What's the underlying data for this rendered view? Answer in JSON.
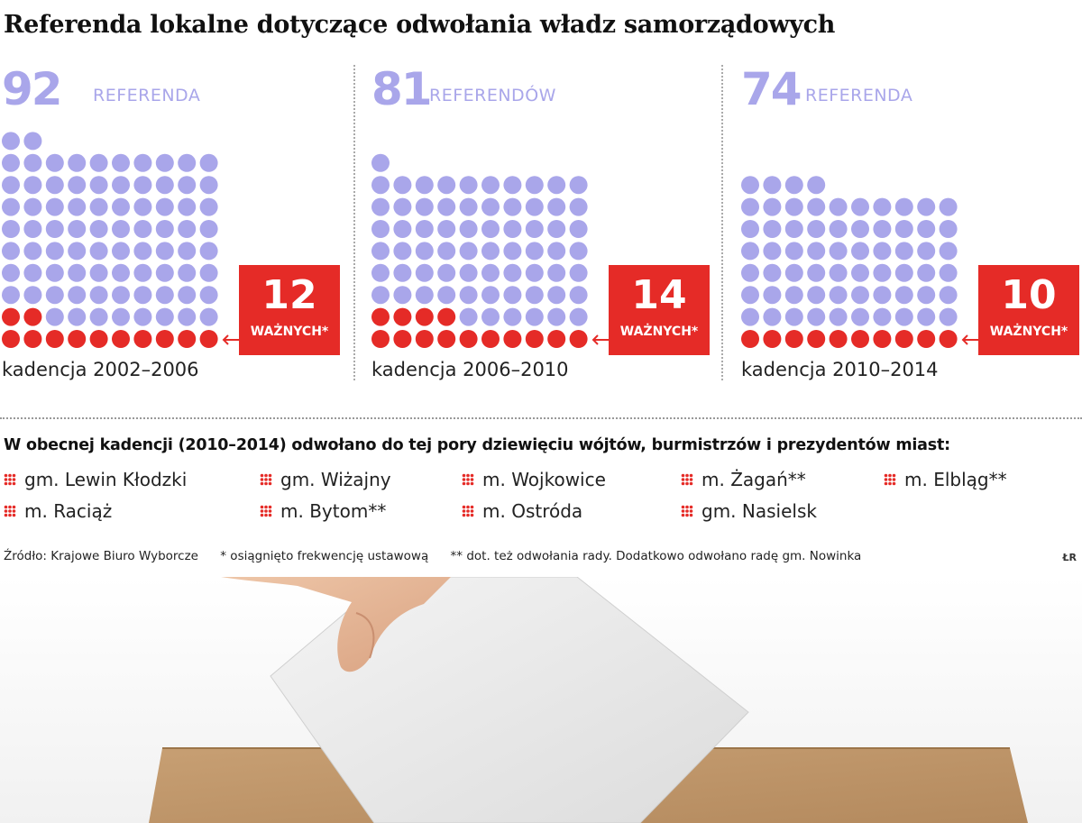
{
  "title": "Referenda lokalne dotyczące odwołania władz samorządowych",
  "chart_data": [
    {
      "type": "waffle",
      "total": 92,
      "total_label": "REFERENDA",
      "valid": 12,
      "valid_label": "WAŻNYCH*",
      "term": "kadencja 2002–2006"
    },
    {
      "type": "waffle",
      "total": 81,
      "total_label": "REFERENDÓW",
      "valid": 14,
      "valid_label": "WAŻNYCH*",
      "term": "kadencja 2006–2010"
    },
    {
      "type": "waffle",
      "total": 74,
      "total_label": "REFERENDA",
      "valid": 10,
      "valid_label": "WAŻNYCH*",
      "term": "kadencja 2010–2014"
    }
  ],
  "colors": {
    "total": "#a9a6ea",
    "valid": "#e52b27"
  },
  "list_heading": "W obecnej kadencji (2010–2014) odwołano do tej pory dziewięciu wójtów, burmistrzów i prezydentów miast:",
  "gminy": [
    "gm. Lewin Kłodzki",
    "gm. Wiżajny",
    "m. Wojkowice",
    "m. Żagań**",
    "m. Elbląg**",
    "m. Raciąż",
    "m. Bytom**",
    "m. Ostróda",
    "gm. Nasielsk"
  ],
  "icons": {
    "list_marker": "red-dot-grid-icon",
    "arrow": "arrow-left-icon"
  },
  "footer": {
    "source": "Źródło: Krajowe Biuro Wyborcze",
    "note1": "* osiągnięto frekwencję ustawową",
    "note2": "** dot. też odwołania rady. Dodatkowo odwołano radę gm. Nowinka",
    "credit": "ŁR"
  }
}
